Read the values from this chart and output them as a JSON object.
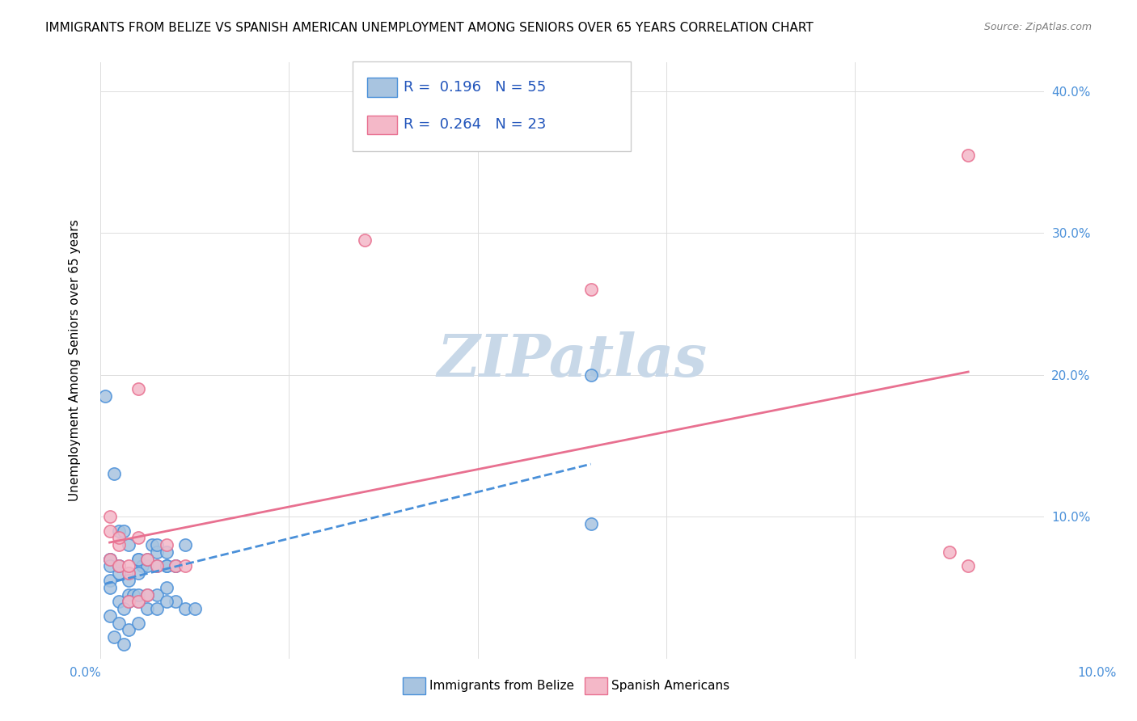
{
  "title": "IMMIGRANTS FROM BELIZE VS SPANISH AMERICAN UNEMPLOYMENT AMONG SENIORS OVER 65 YEARS CORRELATION CHART",
  "source": "Source: ZipAtlas.com",
  "ylabel": "Unemployment Among Seniors over 65 years",
  "y_ticks": [
    0.0,
    0.1,
    0.2,
    0.3,
    0.4
  ],
  "y_tick_labels": [
    "",
    "10.0%",
    "20.0%",
    "30.0%",
    "40.0%"
  ],
  "xlim": [
    0.0,
    0.1
  ],
  "ylim": [
    0.0,
    0.42
  ],
  "belize_R": 0.196,
  "belize_N": 55,
  "spanish_R": 0.264,
  "spanish_N": 23,
  "belize_color": "#a8c4e0",
  "belize_line_color": "#4a90d9",
  "spanish_color": "#f4b8c8",
  "spanish_line_color": "#e87090",
  "watermark": "ZIPatlas",
  "watermark_color": "#c8d8e8",
  "belize_x": [
    0.001,
    0.002,
    0.003,
    0.004,
    0.0045,
    0.005,
    0.006,
    0.007,
    0.008,
    0.009,
    0.001,
    0.002,
    0.003,
    0.004,
    0.0055,
    0.006,
    0.007,
    0.008,
    0.001,
    0.002,
    0.003,
    0.004,
    0.005,
    0.006,
    0.007,
    0.008,
    0.009,
    0.01,
    0.001,
    0.002,
    0.003,
    0.004,
    0.005,
    0.006,
    0.007,
    0.0035,
    0.001,
    0.002,
    0.003,
    0.004,
    0.005,
    0.006,
    0.007,
    0.0025,
    0.001,
    0.002,
    0.003,
    0.0015,
    0.0025,
    0.004,
    0.0005,
    0.0015,
    0.0025,
    0.052,
    0.052
  ],
  "belize_y": [
    0.07,
    0.065,
    0.06,
    0.07,
    0.065,
    0.065,
    0.065,
    0.065,
    0.065,
    0.08,
    0.055,
    0.06,
    0.055,
    0.06,
    0.08,
    0.075,
    0.065,
    0.065,
    0.05,
    0.04,
    0.045,
    0.04,
    0.035,
    0.045,
    0.05,
    0.04,
    0.035,
    0.035,
    0.07,
    0.09,
    0.08,
    0.07,
    0.07,
    0.08,
    0.075,
    0.045,
    0.065,
    0.065,
    0.04,
    0.045,
    0.045,
    0.035,
    0.04,
    0.035,
    0.03,
    0.025,
    0.02,
    0.015,
    0.01,
    0.025,
    0.185,
    0.13,
    0.09,
    0.2,
    0.095
  ],
  "spanish_x": [
    0.001,
    0.002,
    0.003,
    0.004,
    0.005,
    0.006,
    0.007,
    0.008,
    0.009,
    0.001,
    0.002,
    0.003,
    0.004,
    0.005,
    0.001,
    0.002,
    0.003,
    0.004,
    0.028,
    0.052,
    0.09,
    0.092,
    0.092
  ],
  "spanish_y": [
    0.07,
    0.065,
    0.06,
    0.085,
    0.07,
    0.065,
    0.08,
    0.065,
    0.065,
    0.09,
    0.08,
    0.04,
    0.04,
    0.045,
    0.1,
    0.085,
    0.065,
    0.19,
    0.295,
    0.26,
    0.075,
    0.065,
    0.355
  ]
}
